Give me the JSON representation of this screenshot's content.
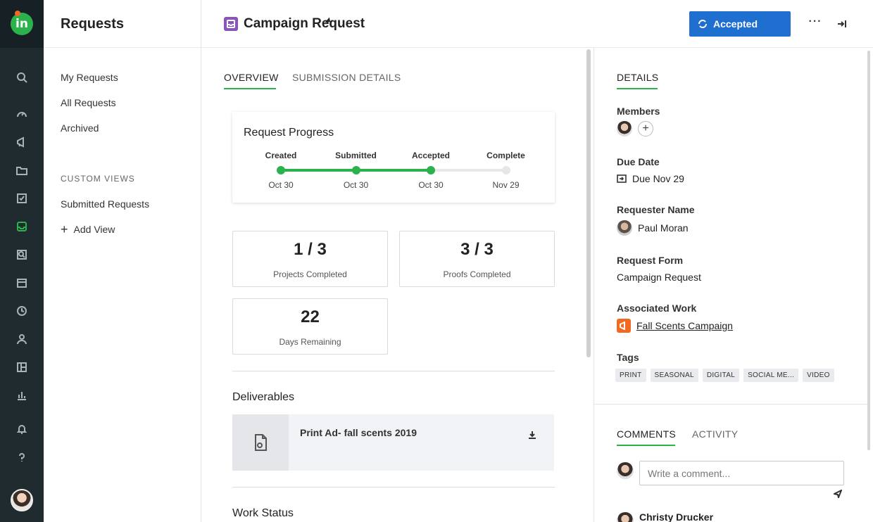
{
  "nav": {
    "title": "Requests",
    "items": [
      {
        "label": "My Requests"
      },
      {
        "label": "All Requests"
      },
      {
        "label": "Archived"
      }
    ],
    "custom_views_label": "CUSTOM VIEWS",
    "custom_views": [
      {
        "label": "Submitted Requests"
      }
    ],
    "add_view_label": "Add View"
  },
  "header": {
    "title": "Campaign Request",
    "status_label": "Accepted",
    "more_label": "···"
  },
  "main": {
    "tabs": [
      {
        "label": "OVERVIEW"
      },
      {
        "label": "SUBMISSION DETAILS"
      }
    ],
    "progress": {
      "title": "Request Progress",
      "steps": [
        {
          "label": "Created",
          "date": "Oct 30",
          "done": true
        },
        {
          "label": "Submitted",
          "date": "Oct 30",
          "done": true
        },
        {
          "label": "Accepted",
          "date": "Oct 30",
          "done": true
        },
        {
          "label": "Complete",
          "date": "Nov 29",
          "done": false
        }
      ]
    },
    "stats": [
      {
        "value": "1 / 3",
        "label": "Projects Completed"
      },
      {
        "value": "3 / 3",
        "label": "Proofs Completed"
      },
      {
        "value": "22",
        "label": "Days Remaining"
      }
    ],
    "deliverables_title": "Deliverables",
    "deliverables": [
      {
        "name": "Print Ad- fall scents 2019"
      }
    ],
    "work_status_title": "Work Status"
  },
  "details": {
    "tab_label": "DETAILS",
    "members_label": "Members",
    "due_date_label": "Due Date",
    "due_date_value": "Due Nov 29",
    "requester_label": "Requester Name",
    "requester_value": "Paul Moran",
    "form_label": "Request Form",
    "form_value": "Campaign Request",
    "work_label": "Associated Work",
    "work_value": "Fall Scents Campaign",
    "tags_label": "Tags",
    "tags": [
      "PRINT",
      "SEASONAL",
      "DIGITAL",
      "SOCIAL ME...",
      "VIDEO"
    ]
  },
  "comments": {
    "tabs": [
      {
        "label": "COMMENTS"
      },
      {
        "label": "ACTIVITY"
      }
    ],
    "input_placeholder": "Write a comment...",
    "first_author": "Christy Drucker"
  },
  "colors": {
    "accent_green": "#2bb24c",
    "status_blue": "#1f6fd1",
    "rail_bg": "#1f2b2f",
    "request_icon": "#8a55b8",
    "work_icon": "#f26a21"
  }
}
